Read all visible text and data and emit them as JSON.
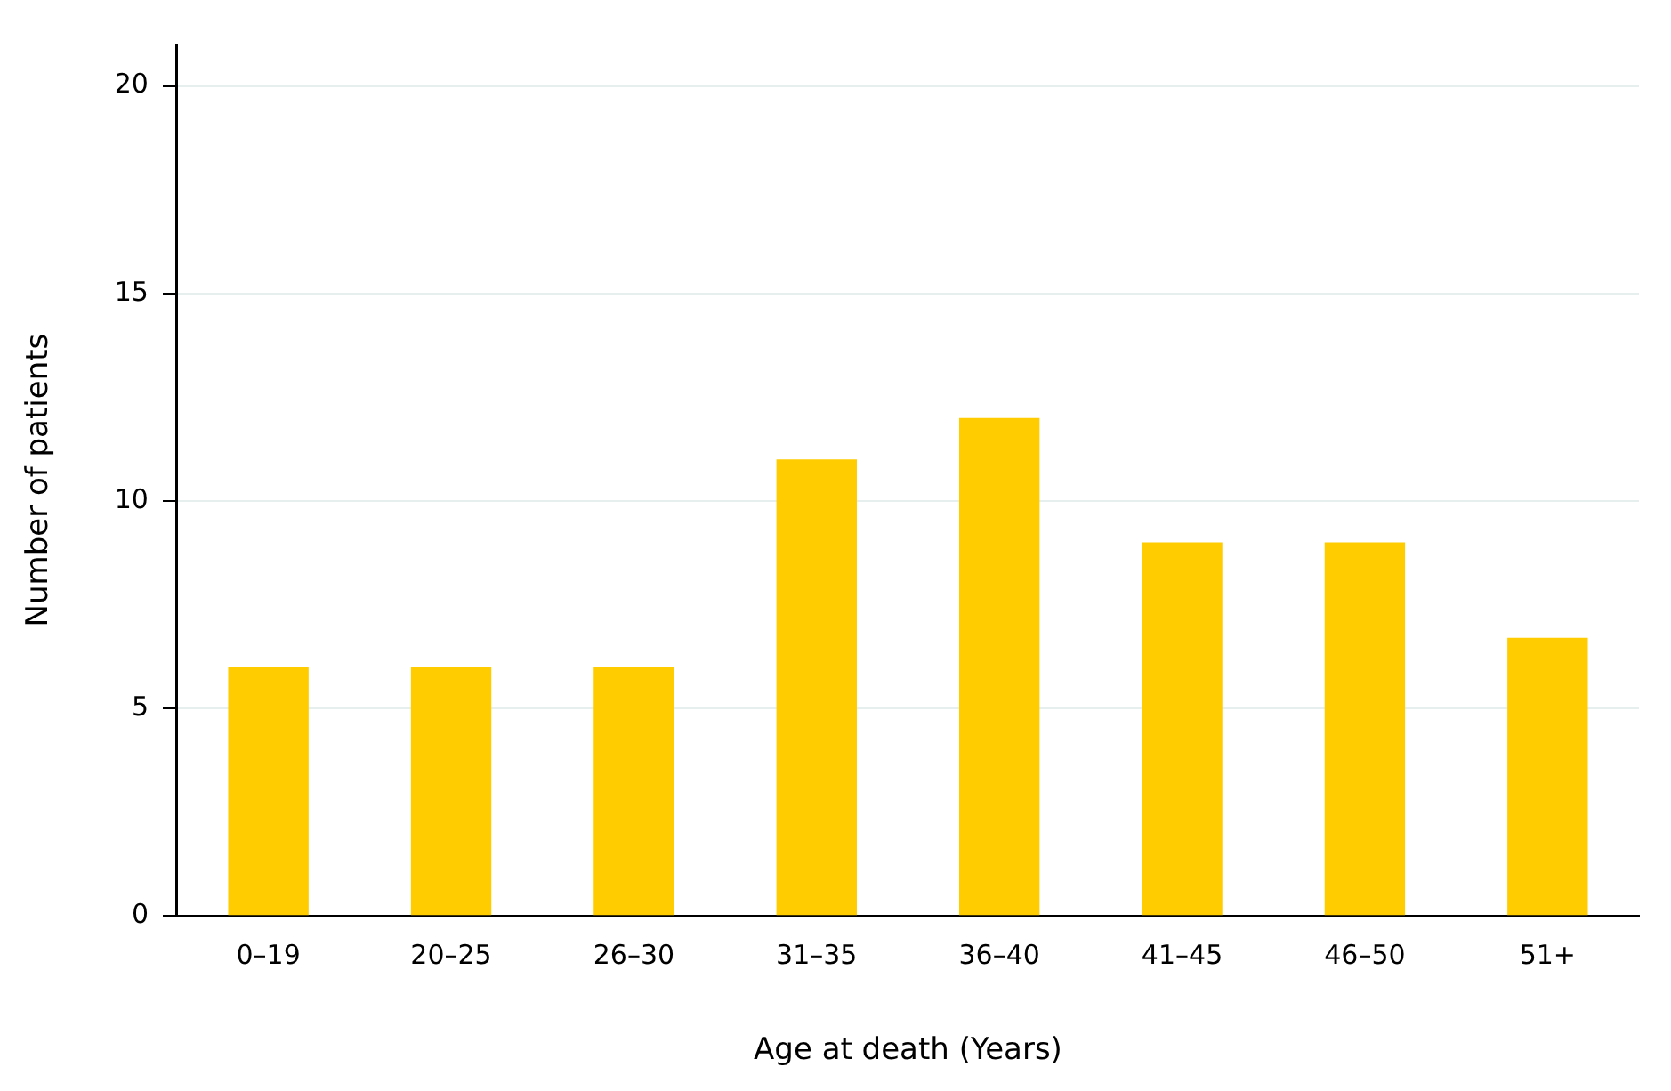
{
  "chart_data": {
    "type": "bar",
    "xlabel": "Age at death (Years)",
    "ylabel": "Number of patients",
    "categories": [
      "0–19",
      "20–25",
      "26–30",
      "31–35",
      "36–40",
      "41–45",
      "46–50",
      "51+"
    ],
    "values": [
      6,
      6,
      6,
      11,
      12,
      9,
      9,
      6.7
    ],
    "color": "#ffcc00",
    "ylim": [
      0,
      21
    ],
    "yticks": [
      0,
      5,
      10,
      15,
      20
    ],
    "grid": "y"
  }
}
